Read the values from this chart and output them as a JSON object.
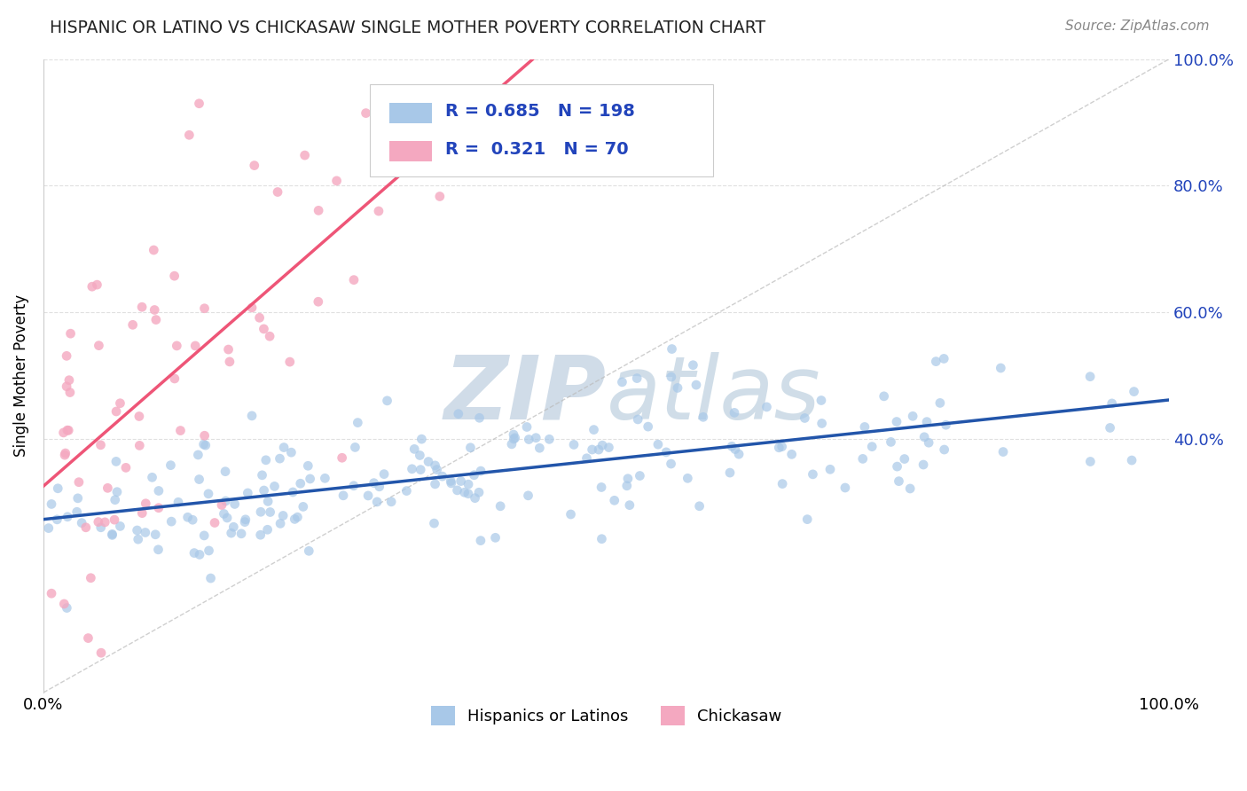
{
  "title": "HISPANIC OR LATINO VS CHICKASAW SINGLE MOTHER POVERTY CORRELATION CHART",
  "source_text": "Source: ZipAtlas.com",
  "ylabel": "Single Mother Poverty",
  "blue_R": 0.685,
  "blue_N": 198,
  "pink_R": 0.321,
  "pink_N": 70,
  "blue_dot_color": "#A8C8E8",
  "pink_dot_color": "#F4A8C0",
  "blue_line_color": "#2255AA",
  "pink_line_color": "#EE5577",
  "diagonal_color": "#BBBBBB",
  "legend_R_color": "#2244BB",
  "background_color": "#FFFFFF",
  "watermark_color": "#D0DCE8",
  "grid_color": "#DDDDDD",
  "legend_label_blue": "Hispanics or Latinos",
  "legend_label_pink": "Chickasaw",
  "figsize": [
    14.06,
    8.92
  ],
  "dpi": 100
}
